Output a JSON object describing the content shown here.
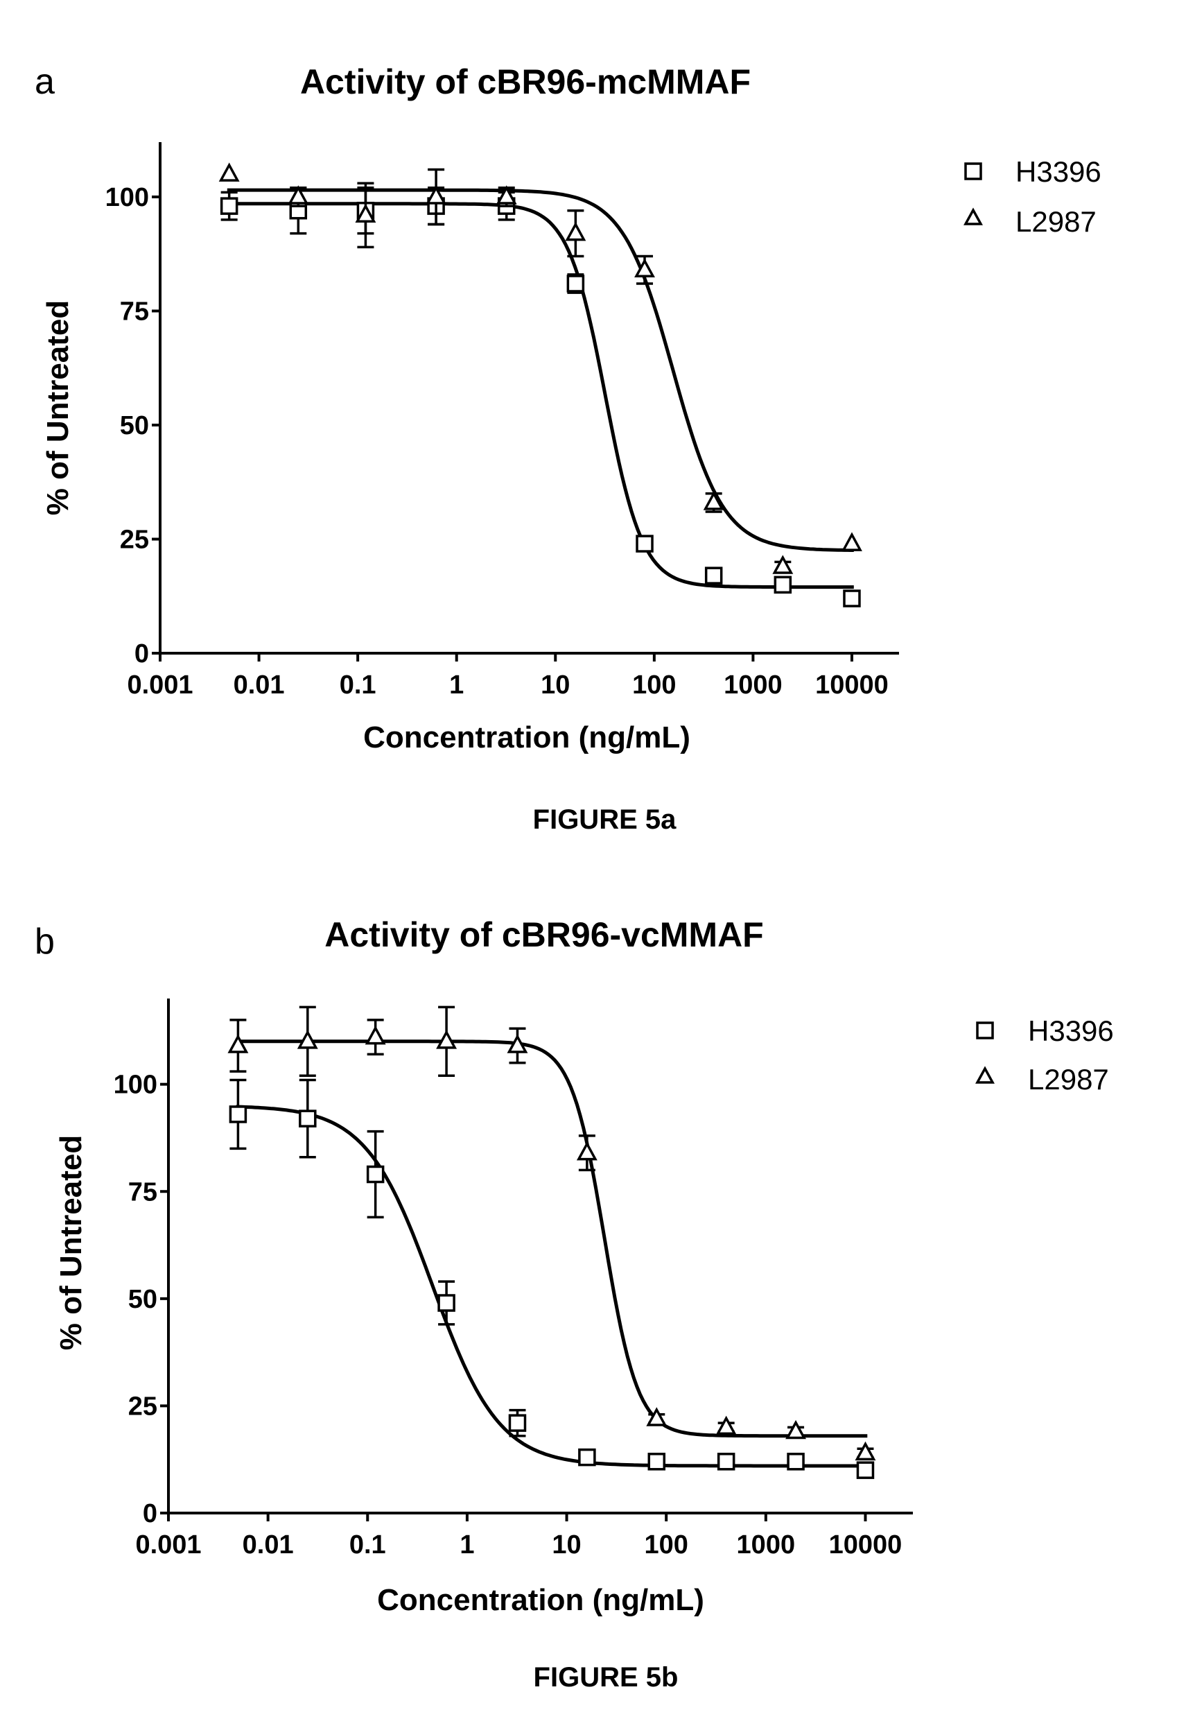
{
  "chart_data": [
    {
      "type": "scatter",
      "panel_label": "a",
      "title": "Activity of cBR96-mcMMAF",
      "xlabel": "Concentration (ng/mL)",
      "ylabel": "% of  Untreated",
      "xscale": "log",
      "xlim": [
        0.001,
        30000
      ],
      "ylim": [
        0,
        112
      ],
      "x_ticks": [
        0.001,
        0.01,
        0.1,
        1,
        10,
        100,
        1000,
        10000
      ],
      "x_tick_labels": [
        "0.001",
        "0.01",
        "0.1",
        "1",
        "10",
        "100",
        "1000",
        "10000"
      ],
      "y_ticks": [
        0,
        25,
        50,
        75,
        100
      ],
      "y_tick_labels": [
        "0",
        "25",
        "50",
        "75",
        "100"
      ],
      "legend_position": "top-right",
      "caption": "FIGURE 5a",
      "series": [
        {
          "name": "H3396",
          "marker": "square",
          "x": [
            0.005,
            0.025,
            0.12,
            0.62,
            3.2,
            16,
            80,
            400,
            2000,
            10000
          ],
          "y": [
            98,
            97,
            97,
            98,
            98,
            81,
            24,
            17,
            15,
            12
          ],
          "err": [
            3,
            5,
            5,
            4,
            3,
            2,
            1,
            1,
            1,
            1
          ],
          "fit": {
            "bottom": 14.5,
            "top": 98.5,
            "ec50": 32,
            "hill": 2.3
          }
        },
        {
          "name": "L2987",
          "marker": "triangle",
          "x": [
            0.005,
            0.025,
            0.12,
            0.62,
            3.2,
            16,
            80,
            400,
            2000,
            10000
          ],
          "y": [
            105,
            100,
            96,
            100,
            100,
            92,
            84,
            33,
            19,
            24
          ],
          "err": [
            0,
            2,
            7,
            6,
            2,
            5,
            3,
            2,
            1,
            0
          ],
          "fit": {
            "bottom": 22.5,
            "top": 101.5,
            "ec50": 155,
            "hill": 1.7
          }
        }
      ]
    },
    {
      "type": "scatter",
      "panel_label": "b",
      "title": "Activity of cBR96-vcMMAF",
      "xlabel": "Concentration (ng/mL)",
      "ylabel": "% of  Untreated",
      "xscale": "log",
      "xlim": [
        0.001,
        30000
      ],
      "ylim": [
        0,
        120
      ],
      "x_ticks": [
        0.001,
        0.01,
        0.1,
        1,
        10,
        100,
        1000,
        10000
      ],
      "x_tick_labels": [
        "0.001",
        "0.01",
        "0.1",
        "1",
        "10",
        "100",
        "1000",
        "10000"
      ],
      "y_ticks": [
        0,
        25,
        50,
        75,
        100
      ],
      "y_tick_labels": [
        "0",
        "25",
        "50",
        "75",
        "100"
      ],
      "legend_position": "top-right",
      "caption": "FIGURE 5b",
      "series": [
        {
          "name": "H3396",
          "marker": "square",
          "x": [
            0.005,
            0.025,
            0.12,
            0.62,
            3.2,
            16,
            80,
            400,
            2000,
            10000
          ],
          "y": [
            93,
            92,
            79,
            49,
            21,
            13,
            12,
            12,
            12,
            10
          ],
          "err": [
            8,
            9,
            10,
            5,
            3,
            1,
            1,
            1,
            1,
            1
          ],
          "fit": {
            "bottom": 11,
            "top": 95,
            "ec50": 0.45,
            "hill": 1.3
          }
        },
        {
          "name": "L2987",
          "marker": "triangle",
          "x": [
            0.005,
            0.025,
            0.12,
            0.62,
            3.2,
            16,
            80,
            400,
            2000,
            10000
          ],
          "y": [
            109,
            110,
            111,
            110,
            109,
            84,
            22,
            20,
            19,
            14
          ],
          "err": [
            6,
            8,
            4,
            8,
            4,
            4,
            1,
            1,
            1,
            1
          ],
          "fit": {
            "bottom": 18,
            "top": 110,
            "ec50": 24,
            "hill": 2.6
          }
        }
      ]
    }
  ]
}
